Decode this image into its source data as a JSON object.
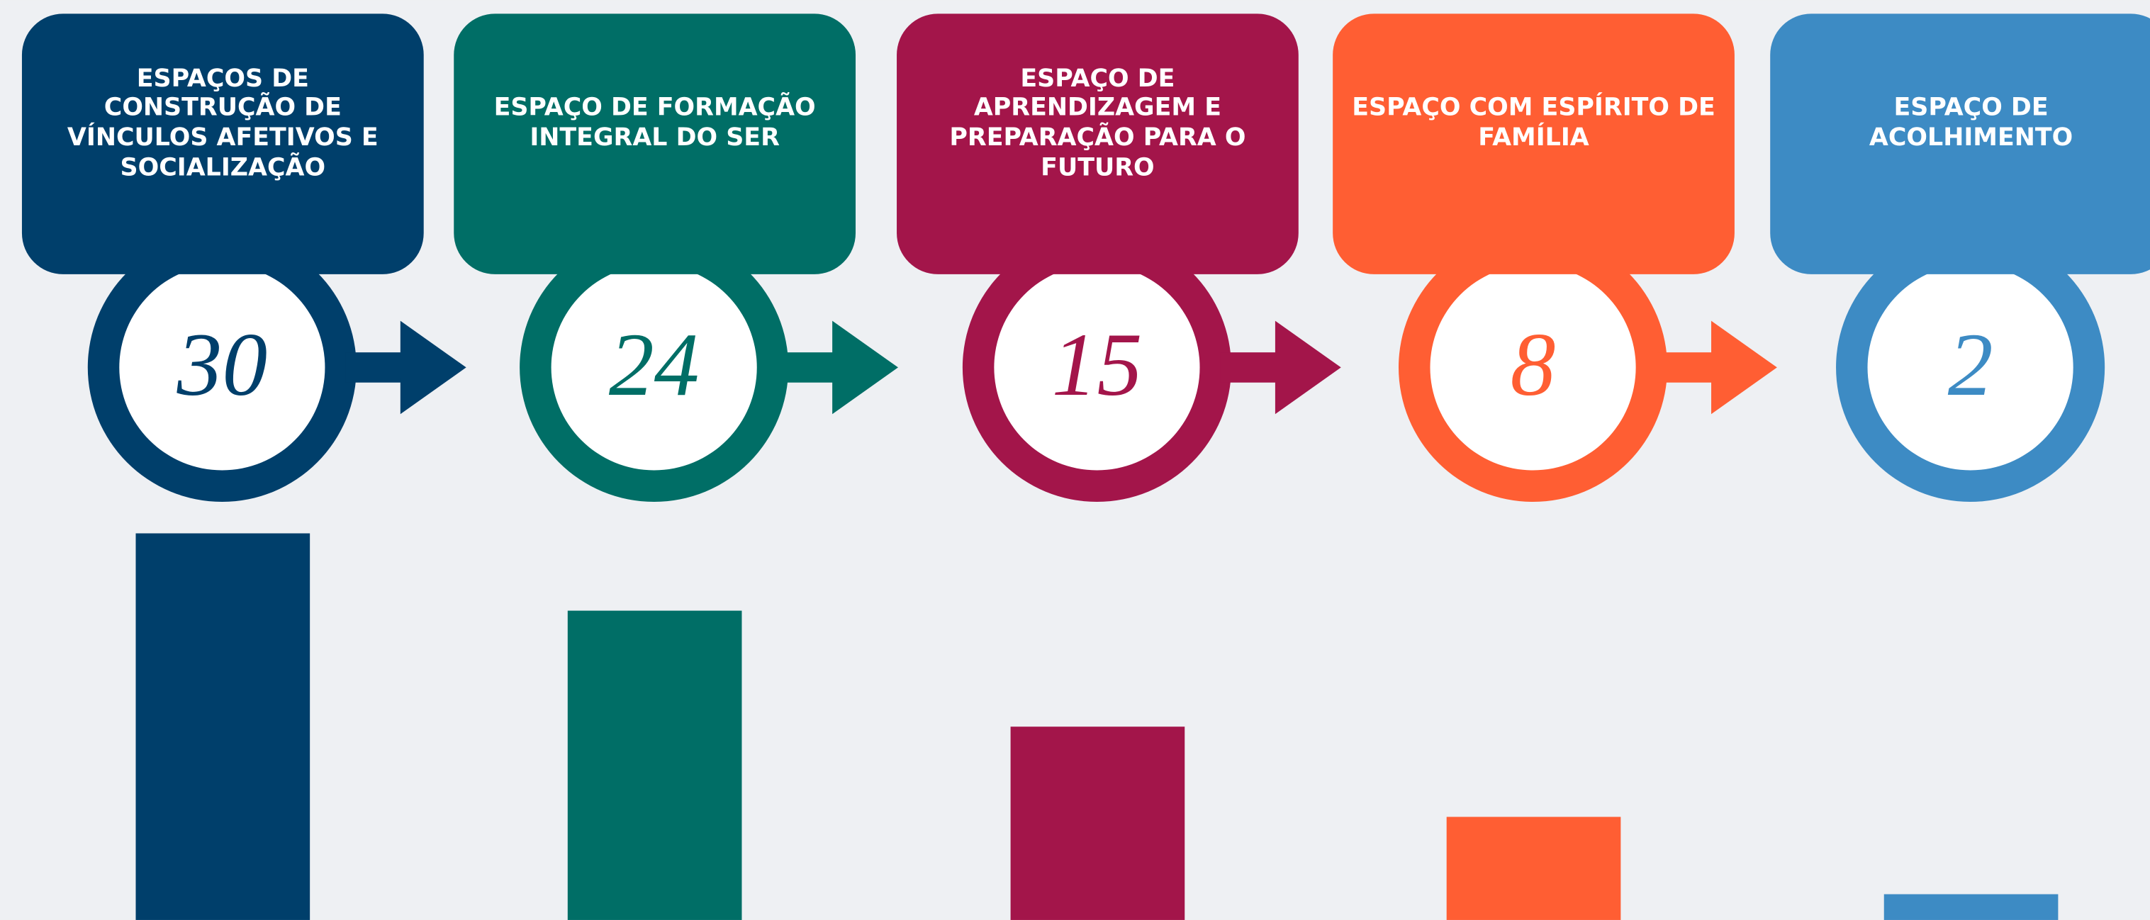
{
  "chart_data": {
    "type": "bar",
    "categories": [
      "ESPAÇOS DE CONSTRUÇÃO DE VÍNCULOS AFETIVOS E SOCIALIZAÇÃO",
      "ESPAÇO DE FORMAÇÃO INTEGRAL DO SER",
      "ESPAÇO DE APRENDIZAGEM E PREPARAÇÃO PARA O FUTURO",
      "ESPAÇO COM ESPÍRITO DE FAMÍLIA",
      "ESPAÇO DE ACOLHIMENTO"
    ],
    "values": [
      30,
      24,
      15,
      8,
      2
    ],
    "colors": [
      "#003f6b",
      "#006e66",
      "#a3154a",
      "#ff5e33",
      "#3d8bc4"
    ]
  }
}
